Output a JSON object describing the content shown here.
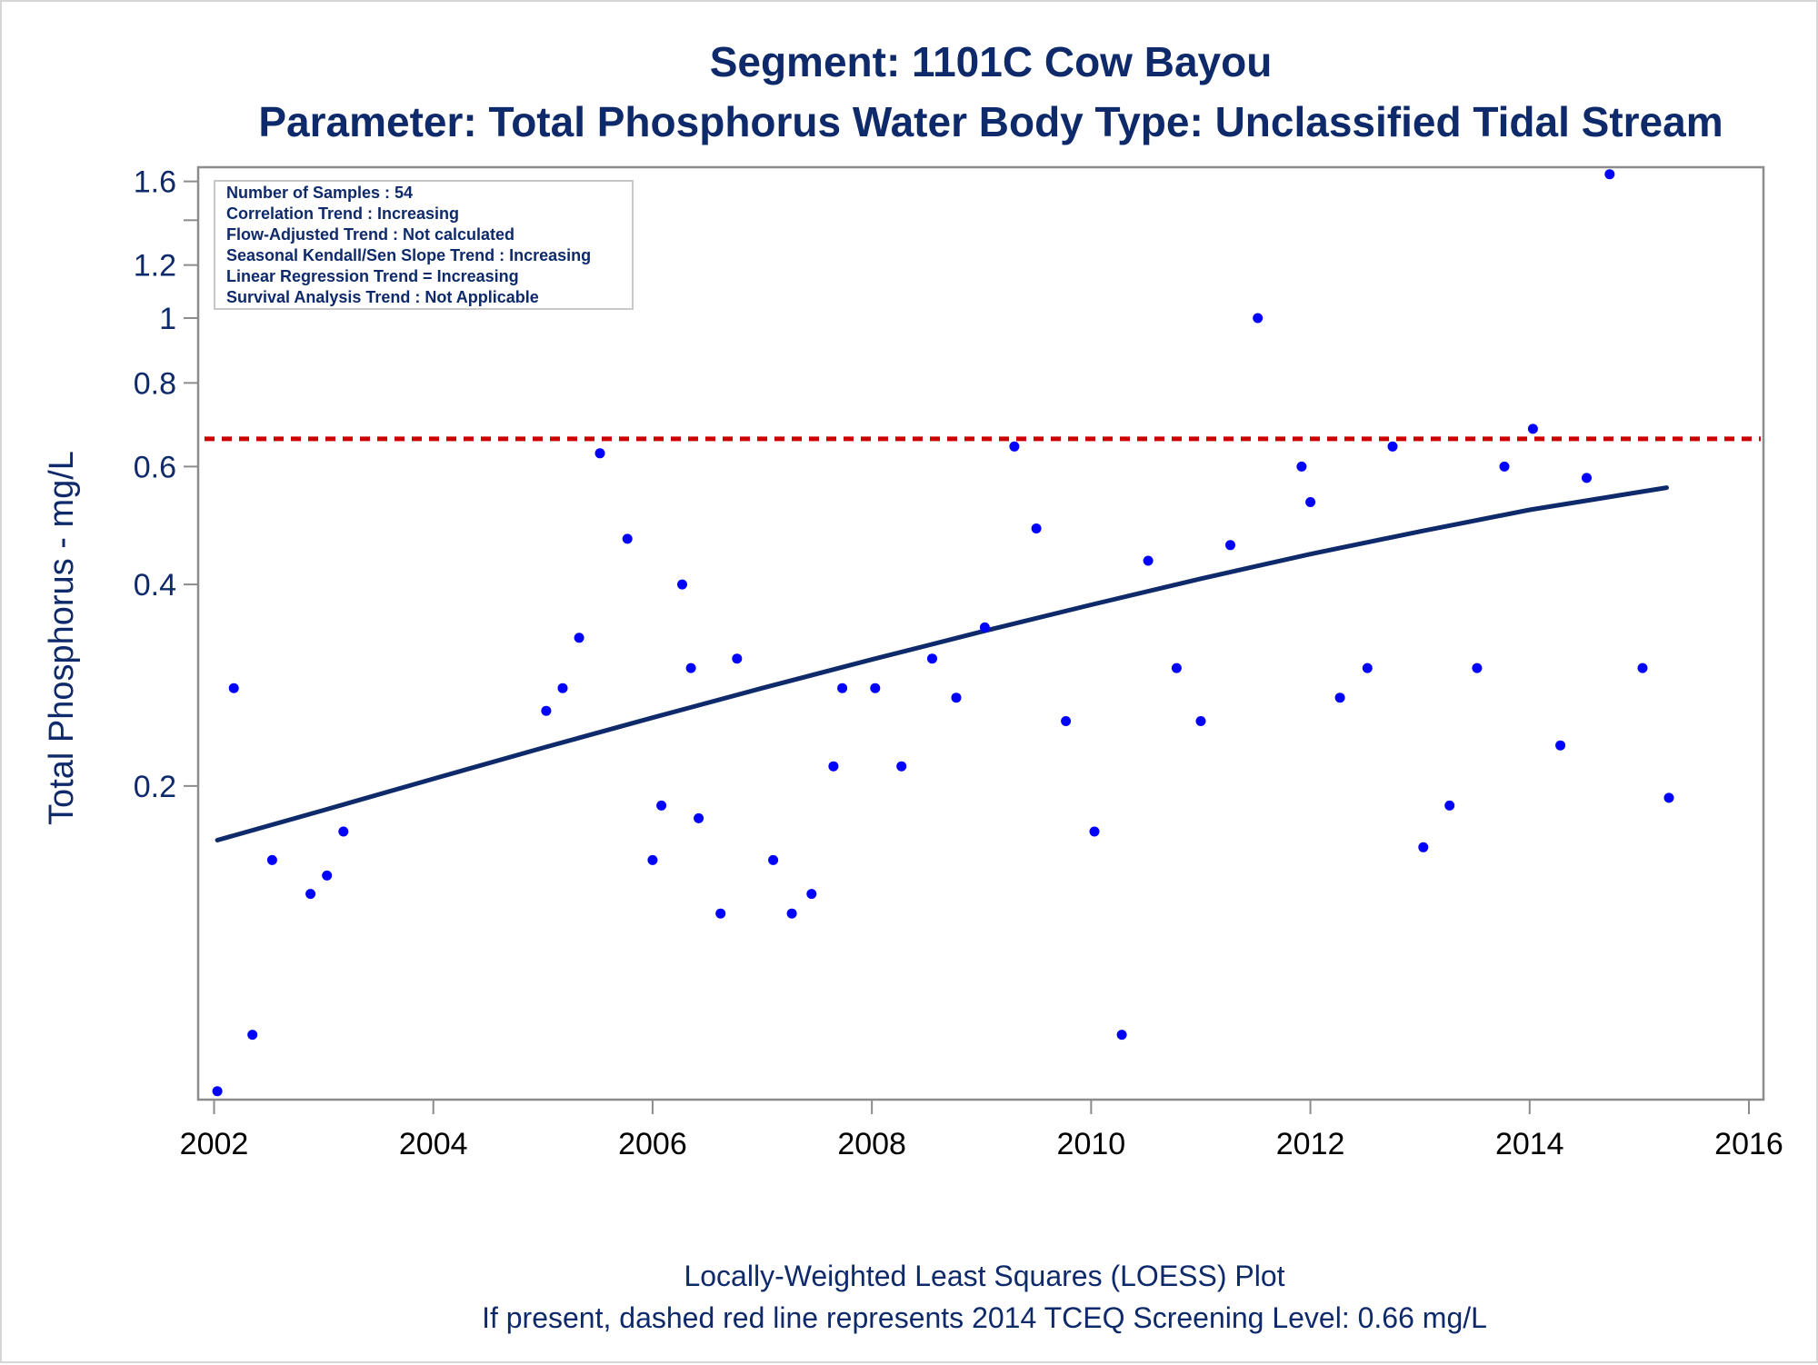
{
  "chart_data": {
    "type": "scatter",
    "title": "Segment: 1101C  Cow Bayou",
    "subtitle": "Parameter: Total Phosphorus   Water Body Type: Unclassified Tidal Stream",
    "xlabel": "",
    "ylabel": "Total Phosphorus - mg/L",
    "y_scale": "log",
    "xlim": [
      2002,
      2016
    ],
    "ylim": [
      0.068,
      1.68
    ],
    "x_ticks": [
      2002,
      2004,
      2006,
      2008,
      2010,
      2012,
      2014,
      2016
    ],
    "y_ticks": [
      0.2,
      0.4,
      0.6,
      0.8,
      1,
      1.2,
      1.6
    ],
    "y_tick_labels": [
      "0.2",
      "0.4",
      "0.6",
      "0.8",
      "1",
      "1.2",
      "1.6"
    ],
    "y_minor_ticks": [
      1.4
    ],
    "screening_level": 0.66,
    "screening_color": "#cc0000",
    "point_color": "#0000ff",
    "loess_color": "#0e2a6b",
    "loess": [
      {
        "x": 2002.03,
        "y": 0.166
      },
      {
        "x": 2003.0,
        "y": 0.184
      },
      {
        "x": 2004.0,
        "y": 0.205
      },
      {
        "x": 2005.0,
        "y": 0.228
      },
      {
        "x": 2006.0,
        "y": 0.253
      },
      {
        "x": 2007.0,
        "y": 0.28
      },
      {
        "x": 2008.0,
        "y": 0.309
      },
      {
        "x": 2009.0,
        "y": 0.34
      },
      {
        "x": 2010.0,
        "y": 0.373
      },
      {
        "x": 2011.0,
        "y": 0.408
      },
      {
        "x": 2012.0,
        "y": 0.444
      },
      {
        "x": 2013.0,
        "y": 0.48
      },
      {
        "x": 2014.0,
        "y": 0.517
      },
      {
        "x": 2015.25,
        "y": 0.558
      }
    ],
    "points": [
      {
        "x": 2002.03,
        "y": 0.07
      },
      {
        "x": 2002.18,
        "y": 0.28
      },
      {
        "x": 2002.35,
        "y": 0.085
      },
      {
        "x": 2002.53,
        "y": 0.155
      },
      {
        "x": 2002.88,
        "y": 0.138
      },
      {
        "x": 2003.03,
        "y": 0.147
      },
      {
        "x": 2003.18,
        "y": 0.171
      },
      {
        "x": 2005.03,
        "y": 0.259
      },
      {
        "x": 2005.18,
        "y": 0.28
      },
      {
        "x": 2005.33,
        "y": 0.333
      },
      {
        "x": 2005.52,
        "y": 0.628
      },
      {
        "x": 2005.77,
        "y": 0.468
      },
      {
        "x": 2006.0,
        "y": 0.155
      },
      {
        "x": 2006.08,
        "y": 0.187
      },
      {
        "x": 2006.27,
        "y": 0.4
      },
      {
        "x": 2006.35,
        "y": 0.3
      },
      {
        "x": 2006.42,
        "y": 0.179
      },
      {
        "x": 2006.62,
        "y": 0.129
      },
      {
        "x": 2006.77,
        "y": 0.31
      },
      {
        "x": 2007.1,
        "y": 0.155
      },
      {
        "x": 2007.27,
        "y": 0.129
      },
      {
        "x": 2007.45,
        "y": 0.138
      },
      {
        "x": 2007.65,
        "y": 0.214
      },
      {
        "x": 2007.73,
        "y": 0.28
      },
      {
        "x": 2008.03,
        "y": 0.28
      },
      {
        "x": 2008.27,
        "y": 0.214
      },
      {
        "x": 2008.55,
        "y": 0.31
      },
      {
        "x": 2008.77,
        "y": 0.271
      },
      {
        "x": 2009.03,
        "y": 0.345
      },
      {
        "x": 2009.3,
        "y": 0.643
      },
      {
        "x": 2009.5,
        "y": 0.485
      },
      {
        "x": 2009.77,
        "y": 0.25
      },
      {
        "x": 2010.03,
        "y": 0.171
      },
      {
        "x": 2010.28,
        "y": 0.085
      },
      {
        "x": 2010.52,
        "y": 0.434
      },
      {
        "x": 2010.78,
        "y": 0.3
      },
      {
        "x": 2011.0,
        "y": 0.25
      },
      {
        "x": 2011.27,
        "y": 0.458
      },
      {
        "x": 2011.52,
        "y": 1.0
      },
      {
        "x": 2011.92,
        "y": 0.6
      },
      {
        "x": 2012.0,
        "y": 0.531
      },
      {
        "x": 2012.27,
        "y": 0.271
      },
      {
        "x": 2012.52,
        "y": 0.3
      },
      {
        "x": 2012.75,
        "y": 0.643
      },
      {
        "x": 2013.03,
        "y": 0.162
      },
      {
        "x": 2013.27,
        "y": 0.187
      },
      {
        "x": 2013.52,
        "y": 0.3
      },
      {
        "x": 2013.77,
        "y": 0.6
      },
      {
        "x": 2014.03,
        "y": 0.683
      },
      {
        "x": 2014.28,
        "y": 0.23
      },
      {
        "x": 2014.52,
        "y": 0.577
      },
      {
        "x": 2014.73,
        "y": 1.64
      },
      {
        "x": 2015.03,
        "y": 0.3
      },
      {
        "x": 2015.27,
        "y": 0.192
      }
    ]
  },
  "stats_box": {
    "line1": "Number of Samples : 54",
    "line2": "Correlation Trend : Increasing",
    "line3": "Flow-Adjusted Trend : Not calculated",
    "line4": "Seasonal Kendall/Sen Slope Trend : Increasing",
    "line5": "Linear Regression Trend = Increasing",
    "line6": "Survival Analysis Trend : Not Applicable"
  },
  "footnotes": {
    "line1": "Locally-Weighted Least Squares (LOESS) Plot",
    "line2": "If present, dashed red line represents 2014 TCEQ Screening Level: 0.66 mg/L"
  }
}
